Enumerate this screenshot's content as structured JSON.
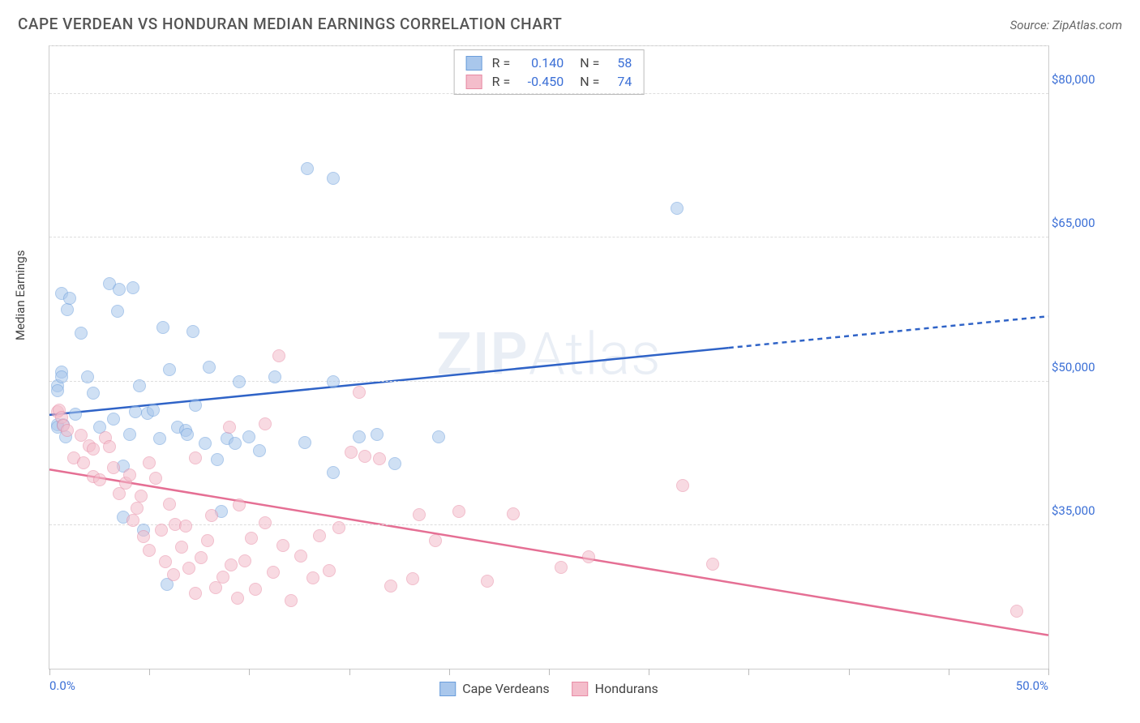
{
  "header": {
    "title": "CAPE VERDEAN VS HONDURAN MEDIAN EARNINGS CORRELATION CHART",
    "source_prefix": "Source: ",
    "source_name": "ZipAtlas.com"
  },
  "y_axis_label": "Median Earnings",
  "watermark": {
    "bold": "ZIP",
    "thin": "Atlas"
  },
  "chart": {
    "type": "scatter",
    "xlim": [
      0,
      50
    ],
    "ylim": [
      20000,
      85000
    ],
    "x_ticks_count": 11,
    "x_tick_labels": {
      "0": "0.0%",
      "50": "50.0%"
    },
    "y_gridlines": [
      35000,
      50000,
      65000,
      80000
    ],
    "y_tick_labels": [
      "$35,000",
      "$50,000",
      "$65,000",
      "$80,000"
    ],
    "top_gridline": 85000,
    "background_color": "#ffffff",
    "grid_color": "#dddddd",
    "point_radius": 8,
    "point_opacity": 0.55,
    "series": [
      {
        "id": "cape_verdeans",
        "label": "Cape Verdeans",
        "color_fill": "#a9c7ec",
        "color_stroke": "#6a9ddb",
        "line_color": "#2f63c7",
        "line_width": 2.5,
        "R": "0.140",
        "N": "58",
        "trend": {
          "x1": 0,
          "y1": 46500,
          "x2": 50,
          "y2": 56800,
          "solid_until_x": 34
        },
        "points": [
          [
            0.4,
            49500
          ],
          [
            0.4,
            45500
          ],
          [
            0.4,
            45200
          ],
          [
            0.4,
            49000
          ],
          [
            0.6,
            51000
          ],
          [
            0.6,
            59200
          ],
          [
            0.6,
            50500
          ],
          [
            0.7,
            45500
          ],
          [
            0.8,
            44200
          ],
          [
            0.9,
            57500
          ],
          [
            1.0,
            58700
          ],
          [
            1.3,
            46600
          ],
          [
            1.6,
            55000
          ],
          [
            1.9,
            50500
          ],
          [
            2.2,
            48800
          ],
          [
            2.5,
            45200
          ],
          [
            3.0,
            60200
          ],
          [
            3.2,
            46100
          ],
          [
            3.4,
            57300
          ],
          [
            3.5,
            59600
          ],
          [
            3.7,
            41200
          ],
          [
            3.7,
            35800
          ],
          [
            4.0,
            44500
          ],
          [
            4.2,
            59800
          ],
          [
            4.3,
            46800
          ],
          [
            4.5,
            49500
          ],
          [
            4.7,
            34500
          ],
          [
            4.9,
            46700
          ],
          [
            5.2,
            47000
          ],
          [
            5.5,
            44000
          ],
          [
            5.7,
            55600
          ],
          [
            5.9,
            28800
          ],
          [
            6.0,
            51200
          ],
          [
            6.4,
            45200
          ],
          [
            6.8,
            44900
          ],
          [
            6.9,
            44500
          ],
          [
            7.2,
            55200
          ],
          [
            7.3,
            47500
          ],
          [
            7.8,
            43500
          ],
          [
            8.0,
            51500
          ],
          [
            8.4,
            41800
          ],
          [
            8.6,
            36400
          ],
          [
            8.9,
            44000
          ],
          [
            9.3,
            43500
          ],
          [
            9.5,
            50000
          ],
          [
            10.0,
            44200
          ],
          [
            10.5,
            42800
          ],
          [
            11.3,
            50500
          ],
          [
            12.8,
            43600
          ],
          [
            12.9,
            72200
          ],
          [
            14.2,
            71200
          ],
          [
            14.2,
            50000
          ],
          [
            14.2,
            40500
          ],
          [
            15.5,
            44200
          ],
          [
            16.4,
            44500
          ],
          [
            17.3,
            41400
          ],
          [
            19.5,
            44200
          ],
          [
            31.4,
            68100
          ]
        ]
      },
      {
        "id": "hondurans",
        "label": "Hondurans",
        "color_fill": "#f4bdcb",
        "color_stroke": "#e78aa4",
        "line_color": "#e56f94",
        "line_width": 2.5,
        "R": "-0.450",
        "N": "74",
        "trend": {
          "x1": 0,
          "y1": 40800,
          "x2": 50,
          "y2": 23500,
          "solid_until_x": 50
        },
        "points": [
          [
            0.4,
            46800
          ],
          [
            0.5,
            47000
          ],
          [
            0.6,
            46200
          ],
          [
            0.7,
            45400
          ],
          [
            0.9,
            44900
          ],
          [
            1.2,
            42000
          ],
          [
            1.6,
            44400
          ],
          [
            1.7,
            41500
          ],
          [
            2.0,
            43300
          ],
          [
            2.2,
            40100
          ],
          [
            2.2,
            42900
          ],
          [
            2.5,
            39700
          ],
          [
            2.8,
            44100
          ],
          [
            3.0,
            43200
          ],
          [
            3.2,
            41000
          ],
          [
            3.5,
            38300
          ],
          [
            3.8,
            39400
          ],
          [
            4.0,
            40200
          ],
          [
            4.2,
            35500
          ],
          [
            4.4,
            36800
          ],
          [
            4.6,
            38000
          ],
          [
            4.7,
            33800
          ],
          [
            5.0,
            32400
          ],
          [
            5.0,
            41500
          ],
          [
            5.3,
            39900
          ],
          [
            5.6,
            34500
          ],
          [
            5.8,
            31200
          ],
          [
            6.0,
            37200
          ],
          [
            6.2,
            29800
          ],
          [
            6.3,
            35100
          ],
          [
            6.6,
            32700
          ],
          [
            6.8,
            34900
          ],
          [
            7.0,
            30500
          ],
          [
            7.3,
            27900
          ],
          [
            7.3,
            42000
          ],
          [
            7.6,
            31600
          ],
          [
            7.9,
            33400
          ],
          [
            8.1,
            36000
          ],
          [
            8.3,
            28500
          ],
          [
            8.7,
            29600
          ],
          [
            9.0,
            45200
          ],
          [
            9.1,
            30800
          ],
          [
            9.4,
            27400
          ],
          [
            9.5,
            37100
          ],
          [
            9.8,
            31300
          ],
          [
            10.1,
            33600
          ],
          [
            10.3,
            28300
          ],
          [
            10.8,
            35200
          ],
          [
            10.8,
            45600
          ],
          [
            11.2,
            30100
          ],
          [
            11.5,
            52700
          ],
          [
            11.7,
            32900
          ],
          [
            12.1,
            27100
          ],
          [
            12.6,
            31800
          ],
          [
            13.2,
            29500
          ],
          [
            13.5,
            33900
          ],
          [
            14.0,
            30200
          ],
          [
            14.5,
            34700
          ],
          [
            15.1,
            42600
          ],
          [
            15.5,
            48900
          ],
          [
            15.8,
            42200
          ],
          [
            16.5,
            41900
          ],
          [
            17.1,
            28600
          ],
          [
            18.2,
            29400
          ],
          [
            18.5,
            36100
          ],
          [
            19.3,
            33400
          ],
          [
            20.5,
            36400
          ],
          [
            21.9,
            29100
          ],
          [
            23.2,
            36200
          ],
          [
            25.6,
            30600
          ],
          [
            27.0,
            31700
          ],
          [
            31.7,
            39100
          ],
          [
            33.2,
            30900
          ],
          [
            48.4,
            26000
          ]
        ]
      }
    ]
  },
  "legend_bottom": [
    "Cape Verdeans",
    "Hondurans"
  ]
}
